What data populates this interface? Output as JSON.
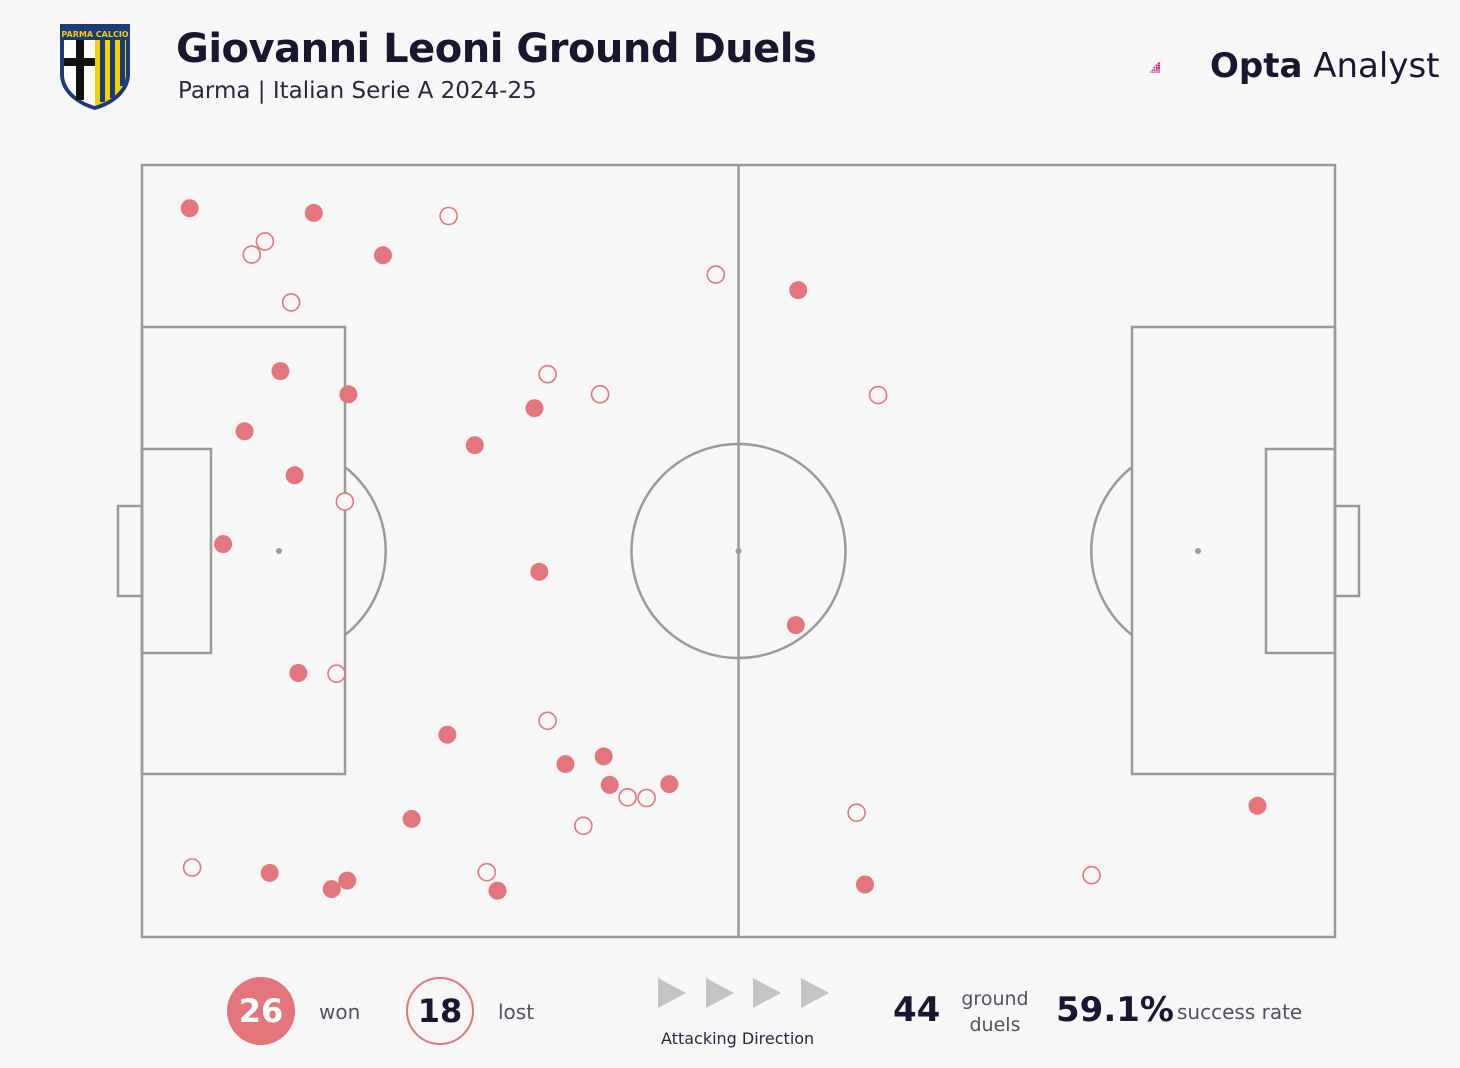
{
  "header": {
    "title": "Giovanni Leoni Ground Duels",
    "subtitle": "Parma | Italian Serie A 2024-25",
    "crest_text": "PARMA CALCIO",
    "brand_bold": "Opta",
    "brand_light": " Analyst"
  },
  "colors": {
    "won": "#e5757c",
    "lost_stroke": "#e5757c",
    "pitch_line": "#9a9a9a",
    "background": "#f7f7f7",
    "text_dark": "#1b1530"
  },
  "chart_data": {
    "type": "scatter",
    "pitch": {
      "length": 100,
      "width": 100,
      "orientation": "horizontal",
      "attacking_direction": "left-to-right"
    },
    "won": [
      [
        4,
        94.4
      ],
      [
        14.4,
        93.8
      ],
      [
        20.2,
        88.3
      ],
      [
        11.6,
        73.3
      ],
      [
        17.3,
        70.3
      ],
      [
        8.6,
        65.5
      ],
      [
        27.9,
        63.7
      ],
      [
        32.9,
        68.5
      ],
      [
        12.8,
        59.8
      ],
      [
        6.8,
        50.9
      ],
      [
        33.3,
        47.3
      ],
      [
        13.1,
        34.2
      ],
      [
        25.6,
        26.2
      ],
      [
        35.5,
        22.4
      ],
      [
        38.7,
        23.4
      ],
      [
        39.2,
        19.7
      ],
      [
        44.2,
        19.8
      ],
      [
        22.6,
        15.3
      ],
      [
        10.7,
        8.3
      ],
      [
        17.2,
        7.3
      ],
      [
        15.9,
        6.2
      ],
      [
        29.8,
        6.0
      ],
      [
        55.0,
        83.8
      ],
      [
        54.8,
        40.4
      ],
      [
        60.6,
        6.8
      ],
      [
        93.5,
        17.0
      ]
    ],
    "lost": [
      [
        25.7,
        93.4
      ],
      [
        10.3,
        90.1
      ],
      [
        9.2,
        88.4
      ],
      [
        12.5,
        82.2
      ],
      [
        48.1,
        85.8
      ],
      [
        34.0,
        72.9
      ],
      [
        38.4,
        70.3
      ],
      [
        17.0,
        56.4
      ],
      [
        61.7,
        70.2
      ],
      [
        16.3,
        34.1
      ],
      [
        34.0,
        28.0
      ],
      [
        40.7,
        18.1
      ],
      [
        42.3,
        18.0
      ],
      [
        37.0,
        14.4
      ],
      [
        28.9,
        8.4
      ],
      [
        4.2,
        9.0
      ],
      [
        59.9,
        16.1
      ],
      [
        79.6,
        8.0
      ]
    ]
  },
  "footer": {
    "won_count": "26",
    "won_label": "won",
    "lost_count": "18",
    "lost_label": "lost",
    "direction_label": "Attacking Direction",
    "total_duels": "44",
    "duels_label_1": "ground",
    "duels_label_2": "duels",
    "success_rate": "59.1%",
    "success_label": "success rate"
  }
}
